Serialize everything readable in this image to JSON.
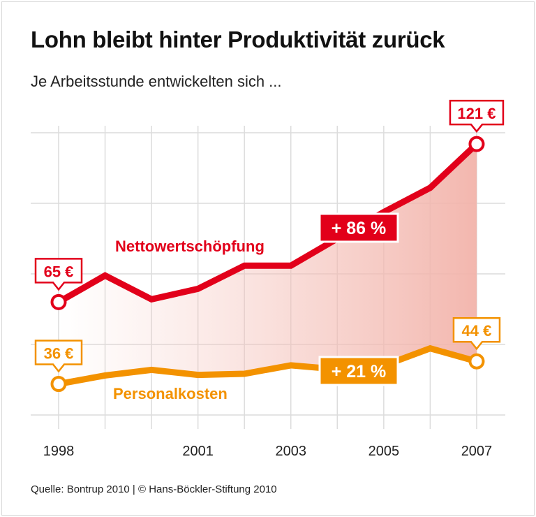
{
  "chart_data": {
    "type": "line",
    "title": "Lohn bleibt hinter Produktivität zurück",
    "subtitle": "Je Arbeitsstunde entwickelten sich ...",
    "source": "Quelle: Bontrup 2010 | © Hans-Böckler-Stiftung 2010",
    "x": [
      1998,
      1999,
      2000,
      2001,
      2002,
      2003,
      2004,
      2005,
      2006,
      2007
    ],
    "x_tick_labels": [
      "1998",
      "2001",
      "2003",
      "2005",
      "2007"
    ],
    "ylim": [
      25,
      125
    ],
    "y_gridlines": [
      25,
      50,
      75,
      100,
      125
    ],
    "grid": true,
    "series": [
      {
        "name": "Nettowertschöpfung",
        "color": "#e2001a",
        "values": [
          65,
          74.4,
          66,
          69.7,
          77.9,
          77.9,
          87.5,
          96.9,
          105.5,
          121
        ],
        "start_label": "65 €",
        "end_label": "121 €",
        "change_label": "+ 86 %"
      },
      {
        "name": "Personalkosten",
        "color": "#f39200",
        "values": [
          36,
          39,
          41,
          39.2,
          39.6,
          42.6,
          41.2,
          42.5,
          48.6,
          44
        ],
        "start_label": "36 €",
        "end_label": "44 €",
        "change_label": "+ 21 %"
      }
    ]
  }
}
